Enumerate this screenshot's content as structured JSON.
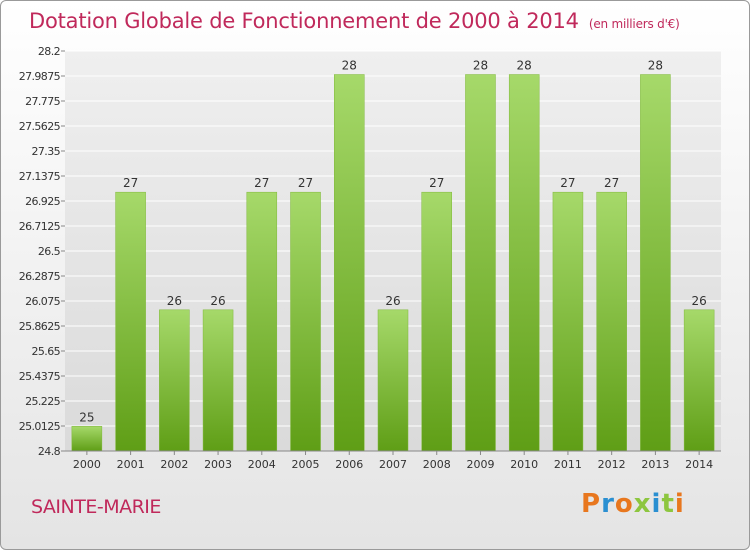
{
  "header": {
    "title": "Dotation Globale de Fonctionnement de 2000 à 2014",
    "subtitle": "(en milliers d'€)"
  },
  "footer": {
    "commune": "SAINTE-MARIE",
    "logo": "Proxiti"
  },
  "colors": {
    "title": "#c0295b",
    "bar_light": "#a6d96a",
    "bar_dark": "#5f9e16",
    "logo": [
      "#e8771e",
      "#2a8fd1",
      "#e8771e",
      "#8dc63f",
      "#2a8fd1",
      "#8dc63f",
      "#e8771e"
    ]
  },
  "chart_data": {
    "type": "bar",
    "title": "Dotation Globale de Fonctionnement de 2000 à 2014",
    "xlabel": "",
    "ylabel": "",
    "categories": [
      "2000",
      "2001",
      "2002",
      "2003",
      "2004",
      "2005",
      "2006",
      "2007",
      "2008",
      "2009",
      "2010",
      "2011",
      "2012",
      "2013",
      "2014"
    ],
    "values": [
      25.01,
      27,
      26,
      26,
      27,
      27,
      28,
      26,
      27,
      28,
      28,
      27,
      27,
      28,
      26
    ],
    "data_labels": [
      "25",
      "27",
      "26",
      "26",
      "27",
      "27",
      "28",
      "26",
      "27",
      "28",
      "28",
      "27",
      "27",
      "28",
      "26"
    ],
    "y_ticks": [
      24.8,
      25.0125,
      25.225,
      25.4375,
      25.65,
      25.8625,
      26.075,
      26.2875,
      26.5,
      26.7125,
      26.925,
      27.1375,
      27.35,
      27.5625,
      27.775,
      27.9875,
      28.2
    ],
    "y_tick_labels": [
      "24.8",
      "25.0125",
      "25.225",
      "25.4375",
      "25.65",
      "25.8625",
      "26.075",
      "26.2875",
      "26.5",
      "26.7125",
      "26.925",
      "27.1375",
      "27.35",
      "27.5625",
      "27.775",
      "27.9875",
      "28.2"
    ],
    "ylim": [
      24.8,
      28.2
    ],
    "grid": true,
    "legend": "none"
  }
}
